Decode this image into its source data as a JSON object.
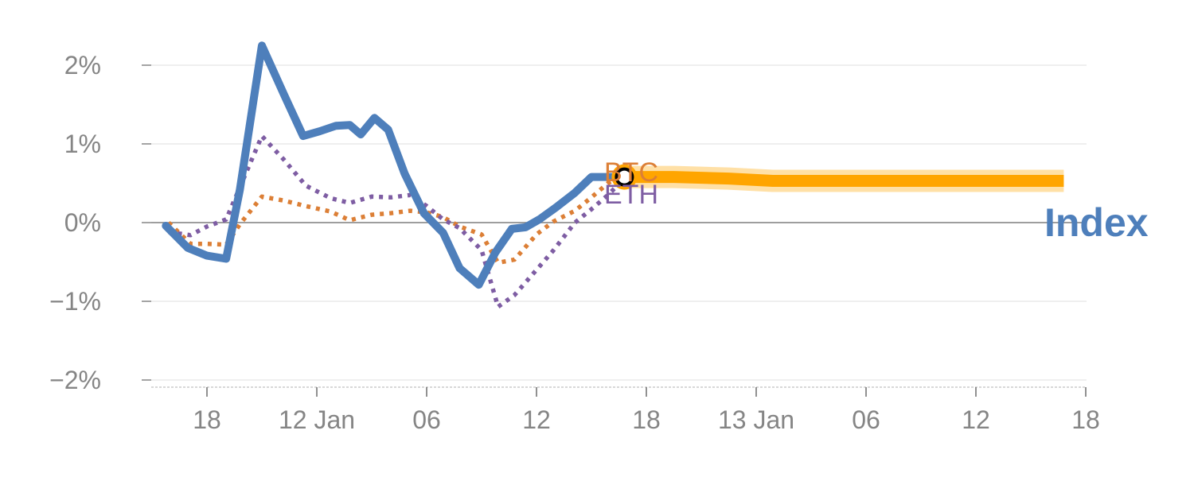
{
  "chart_data": {
    "type": "line",
    "title": "",
    "xlabel": "",
    "ylabel": "",
    "ylim": [
      -2.1,
      2.3
    ],
    "xlim": [
      -1.0,
      16.25
    ],
    "grid": true,
    "y_ticks": [
      {
        "value": 2,
        "label": "2%"
      },
      {
        "value": 1,
        "label": "1%"
      },
      {
        "value": 0,
        "label": "0%"
      },
      {
        "value": -1,
        "label": "−1%"
      },
      {
        "value": -2,
        "label": "−2%"
      }
    ],
    "x_ticks": [
      {
        "value": 0,
        "label": "18"
      },
      {
        "value": 2,
        "label": "12 Jan"
      },
      {
        "value": 4,
        "label": "06"
      },
      {
        "value": 6,
        "label": "12"
      },
      {
        "value": 8,
        "label": "18"
      },
      {
        "value": 10,
        "label": "13 Jan"
      },
      {
        "value": 12,
        "label": "06"
      },
      {
        "value": 14,
        "label": "12"
      },
      {
        "value": 16,
        "label": "18"
      }
    ],
    "series": [
      {
        "name": "Index",
        "style": "solid",
        "color": "#4e7fbb",
        "x": [
          -0.75,
          -0.35,
          0.0,
          0.35,
          0.6,
          1.0,
          1.4,
          1.75,
          2.05,
          2.35,
          2.6,
          2.8,
          3.05,
          3.3,
          3.6,
          3.95,
          4.3,
          4.6,
          4.95,
          5.25,
          5.55,
          5.8,
          6.05,
          6.35,
          6.7,
          7.0,
          7.35,
          7.6
        ],
        "values": [
          -0.04,
          -0.32,
          -0.42,
          -0.46,
          0.42,
          2.25,
          1.63,
          1.1,
          1.16,
          1.23,
          1.24,
          1.12,
          1.33,
          1.18,
          0.62,
          0.12,
          -0.13,
          -0.58,
          -0.79,
          -0.38,
          -0.08,
          -0.06,
          0.04,
          0.19,
          0.38,
          0.58,
          0.58,
          0.58
        ]
      },
      {
        "name": "ETH",
        "style": "dotted",
        "color": "#7e5da3",
        "x": [
          -0.7,
          -0.3,
          0.0,
          0.35,
          0.6,
          1.0,
          1.4,
          1.8,
          2.25,
          2.6,
          3.0,
          3.35,
          3.7,
          4.0,
          4.3,
          4.6,
          5.0,
          5.3,
          5.6,
          6.0,
          6.3,
          6.7,
          7.0,
          7.3,
          7.6
        ],
        "values": [
          -0.12,
          -0.16,
          -0.05,
          0.04,
          0.45,
          1.1,
          0.8,
          0.47,
          0.31,
          0.25,
          0.33,
          0.32,
          0.35,
          0.21,
          0.04,
          -0.07,
          -0.35,
          -1.07,
          -0.92,
          -0.6,
          -0.36,
          0.0,
          0.17,
          0.35,
          0.56
        ]
      },
      {
        "name": "BTC",
        "style": "dotted",
        "color": "#dc7f36",
        "x": [
          -0.7,
          -0.3,
          0.0,
          0.35,
          0.6,
          1.0,
          1.4,
          1.8,
          2.25,
          2.6,
          3.0,
          3.35,
          3.7,
          4.0,
          4.3,
          4.6,
          5.0,
          5.3,
          5.6,
          6.0,
          6.3,
          6.7,
          7.0,
          7.3,
          7.6
        ],
        "values": [
          0.0,
          -0.27,
          -0.27,
          -0.28,
          -0.02,
          0.33,
          0.28,
          0.21,
          0.14,
          0.03,
          0.1,
          0.12,
          0.15,
          0.13,
          0.07,
          -0.05,
          -0.15,
          -0.51,
          -0.47,
          -0.15,
          0.01,
          0.15,
          0.32,
          0.5,
          0.63
        ]
      }
    ],
    "forecast": {
      "color": "#ffa500",
      "x": [
        7.6,
        8.5,
        9.5,
        10.3,
        11.2,
        12.0,
        13.0,
        14.0,
        14.9,
        15.6
      ],
      "values": [
        0.58,
        0.58,
        0.56,
        0.53,
        0.53,
        0.53,
        0.53,
        0.53,
        0.53,
        0.53
      ]
    },
    "current_marker": {
      "x": 7.6,
      "value": 0.58,
      "ring_color": "#ffa500",
      "fill": "#ffffff",
      "stroke": "#000000"
    },
    "labels": [
      {
        "series": "Index",
        "text": "Index",
        "color": "#4e7fbb"
      },
      {
        "series": "BTC",
        "text": "BTC",
        "color": "#dc7f36"
      },
      {
        "series": "ETH",
        "text": "ETH",
        "color": "#7e5da3"
      }
    ],
    "colors": {
      "grid": "#e5e5e5",
      "zero_line": "#7f7f7f",
      "tick": "#858585",
      "axis": "#cccccc"
    }
  }
}
